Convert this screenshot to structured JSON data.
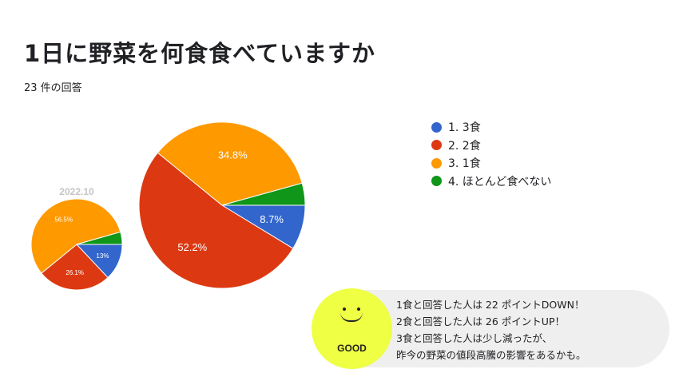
{
  "title": "1日に野菜を何食食べていますか",
  "response_count": "23 件の回答",
  "colors": {
    "blue": "#3366cc",
    "red": "#dc3912",
    "orange": "#ff9900",
    "green": "#109618",
    "good_badge": "#eeff44",
    "panel": "#efefef"
  },
  "chart_data": [
    {
      "type": "pie",
      "title": "",
      "categories": [
        "1. 3食",
        "2. 2食",
        "3. 1食",
        "4. ほとんど食べない"
      ],
      "values": [
        8.7,
        52.2,
        34.8,
        4.3
      ],
      "labels": [
        "8.7%",
        "52.2%",
        "34.8%",
        ""
      ],
      "legend": "right"
    },
    {
      "type": "pie",
      "title": "2022.10",
      "categories": [
        "1. 3食",
        "2. 2食",
        "3. 1食",
        "4. ほとんど食べない"
      ],
      "values": [
        13,
        26.1,
        56.5,
        4.4
      ],
      "labels": [
        "13%",
        "26.1%",
        "56.5%",
        ""
      ]
    }
  ],
  "badge": {
    "label": "GOOD",
    "icon": "smiley-face-icon"
  },
  "comment": {
    "lines": [
      "1食と回答した人は 22 ポイントDOWN！",
      "2食と回答した人は 26 ポイントUP！",
      "3食と回答した人は少し減ったが、",
      "昨今の野菜の値段高騰の影響をあるかも。"
    ]
  }
}
